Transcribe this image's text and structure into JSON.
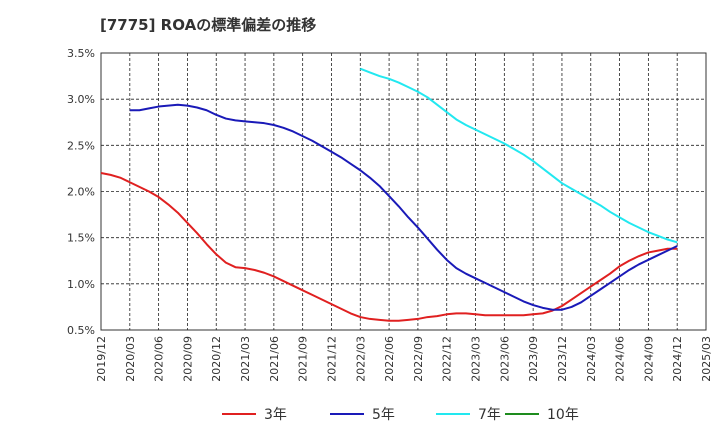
{
  "chart_data": {
    "type": "line",
    "title": "[7775]  ROAの標準偏差の推移",
    "xlabel": "",
    "ylabel": "",
    "ylim": [
      0.5,
      3.5
    ],
    "grid": true,
    "legend_position": "bottom",
    "y_ticks": [
      "0.5%",
      "1.0%",
      "1.5%",
      "2.0%",
      "2.5%",
      "3.0%",
      "3.5%"
    ],
    "x_ticks": [
      "2019/12",
      "2020/03",
      "2020/06",
      "2020/09",
      "2020/12",
      "2021/03",
      "2021/06",
      "2021/09",
      "2021/12",
      "2022/03",
      "2022/06",
      "2022/09",
      "2022/12",
      "2023/03",
      "2023/06",
      "2023/09",
      "2023/12",
      "2024/03",
      "2024/06",
      "2024/09",
      "2024/12",
      "2025/03"
    ],
    "series": [
      {
        "name": "3年",
        "color": "#e02020",
        "points": [
          [
            "2019/12",
            2.2
          ],
          [
            "2020/01",
            2.18
          ],
          [
            "2020/02",
            2.15
          ],
          [
            "2020/03",
            2.1
          ],
          [
            "2020/04",
            2.05
          ],
          [
            "2020/05",
            2.0
          ],
          [
            "2020/06",
            1.94
          ],
          [
            "2020/07",
            1.86
          ],
          [
            "2020/08",
            1.77
          ],
          [
            "2020/09",
            1.66
          ],
          [
            "2020/10",
            1.55
          ],
          [
            "2020/11",
            1.43
          ],
          [
            "2020/12",
            1.32
          ],
          [
            "2021/01",
            1.23
          ],
          [
            "2021/02",
            1.18
          ],
          [
            "2021/03",
            1.17
          ],
          [
            "2021/04",
            1.15
          ],
          [
            "2021/05",
            1.12
          ],
          [
            "2021/06",
            1.08
          ],
          [
            "2021/07",
            1.03
          ],
          [
            "2021/08",
            0.98
          ],
          [
            "2021/09",
            0.93
          ],
          [
            "2021/10",
            0.88
          ],
          [
            "2021/11",
            0.83
          ],
          [
            "2021/12",
            0.78
          ],
          [
            "2022/01",
            0.73
          ],
          [
            "2022/02",
            0.68
          ],
          [
            "2022/03",
            0.64
          ],
          [
            "2022/04",
            0.62
          ],
          [
            "2022/05",
            0.61
          ],
          [
            "2022/06",
            0.6
          ],
          [
            "2022/07",
            0.6
          ],
          [
            "2022/08",
            0.61
          ],
          [
            "2022/09",
            0.62
          ],
          [
            "2022/10",
            0.64
          ],
          [
            "2022/11",
            0.65
          ],
          [
            "2022/12",
            0.67
          ],
          [
            "2023/01",
            0.68
          ],
          [
            "2023/02",
            0.68
          ],
          [
            "2023/03",
            0.67
          ],
          [
            "2023/04",
            0.66
          ],
          [
            "2023/05",
            0.66
          ],
          [
            "2023/06",
            0.66
          ],
          [
            "2023/07",
            0.66
          ],
          [
            "2023/08",
            0.66
          ],
          [
            "2023/09",
            0.67
          ],
          [
            "2023/10",
            0.68
          ],
          [
            "2023/11",
            0.71
          ],
          [
            "2023/12",
            0.76
          ],
          [
            "2024/01",
            0.83
          ],
          [
            "2024/02",
            0.9
          ],
          [
            "2024/03",
            0.97
          ],
          [
            "2024/04",
            1.04
          ],
          [
            "2024/05",
            1.11
          ],
          [
            "2024/06",
            1.19
          ],
          [
            "2024/07",
            1.25
          ],
          [
            "2024/08",
            1.3
          ],
          [
            "2024/09",
            1.34
          ],
          [
            "2024/10",
            1.36
          ],
          [
            "2024/11",
            1.38
          ],
          [
            "2024/12",
            1.38
          ]
        ]
      },
      {
        "name": "5年",
        "color": "#1a1ab8",
        "points": [
          [
            "2020/03",
            2.88
          ],
          [
            "2020/04",
            2.88
          ],
          [
            "2020/05",
            2.9
          ],
          [
            "2020/06",
            2.92
          ],
          [
            "2020/07",
            2.93
          ],
          [
            "2020/08",
            2.94
          ],
          [
            "2020/09",
            2.93
          ],
          [
            "2020/10",
            2.91
          ],
          [
            "2020/11",
            2.88
          ],
          [
            "2020/12",
            2.83
          ],
          [
            "2021/01",
            2.79
          ],
          [
            "2021/02",
            2.77
          ],
          [
            "2021/03",
            2.76
          ],
          [
            "2021/04",
            2.75
          ],
          [
            "2021/05",
            2.74
          ],
          [
            "2021/06",
            2.72
          ],
          [
            "2021/07",
            2.69
          ],
          [
            "2021/08",
            2.65
          ],
          [
            "2021/09",
            2.6
          ],
          [
            "2021/10",
            2.55
          ],
          [
            "2021/11",
            2.49
          ],
          [
            "2021/12",
            2.43
          ],
          [
            "2022/01",
            2.37
          ],
          [
            "2022/02",
            2.3
          ],
          [
            "2022/03",
            2.23
          ],
          [
            "2022/04",
            2.15
          ],
          [
            "2022/05",
            2.06
          ],
          [
            "2022/06",
            1.95
          ],
          [
            "2022/07",
            1.84
          ],
          [
            "2022/08",
            1.72
          ],
          [
            "2022/09",
            1.61
          ],
          [
            "2022/10",
            1.49
          ],
          [
            "2022/11",
            1.37
          ],
          [
            "2022/12",
            1.26
          ],
          [
            "2023/01",
            1.17
          ],
          [
            "2023/02",
            1.11
          ],
          [
            "2023/03",
            1.06
          ],
          [
            "2023/04",
            1.01
          ],
          [
            "2023/05",
            0.96
          ],
          [
            "2023/06",
            0.91
          ],
          [
            "2023/07",
            0.86
          ],
          [
            "2023/08",
            0.81
          ],
          [
            "2023/09",
            0.77
          ],
          [
            "2023/10",
            0.74
          ],
          [
            "2023/11",
            0.72
          ],
          [
            "2023/12",
            0.72
          ],
          [
            "2024/01",
            0.75
          ],
          [
            "2024/02",
            0.8
          ],
          [
            "2024/03",
            0.87
          ],
          [
            "2024/04",
            0.94
          ],
          [
            "2024/05",
            1.01
          ],
          [
            "2024/06",
            1.08
          ],
          [
            "2024/07",
            1.15
          ],
          [
            "2024/08",
            1.21
          ],
          [
            "2024/09",
            1.26
          ],
          [
            "2024/10",
            1.31
          ],
          [
            "2024/11",
            1.36
          ],
          [
            "2024/12",
            1.41
          ]
        ]
      },
      {
        "name": "7年",
        "color": "#22e8f0",
        "points": [
          [
            "2022/03",
            3.33
          ],
          [
            "2022/04",
            3.29
          ],
          [
            "2022/05",
            3.25
          ],
          [
            "2022/06",
            3.22
          ],
          [
            "2022/07",
            3.18
          ],
          [
            "2022/08",
            3.13
          ],
          [
            "2022/09",
            3.08
          ],
          [
            "2022/10",
            3.02
          ],
          [
            "2022/11",
            2.94
          ],
          [
            "2022/12",
            2.86
          ],
          [
            "2023/01",
            2.78
          ],
          [
            "2023/02",
            2.72
          ],
          [
            "2023/03",
            2.67
          ],
          [
            "2023/04",
            2.62
          ],
          [
            "2023/05",
            2.57
          ],
          [
            "2023/06",
            2.52
          ],
          [
            "2023/07",
            2.46
          ],
          [
            "2023/08",
            2.4
          ],
          [
            "2023/09",
            2.33
          ],
          [
            "2023/10",
            2.25
          ],
          [
            "2023/11",
            2.17
          ],
          [
            "2023/12",
            2.09
          ],
          [
            "2024/01",
            2.03
          ],
          [
            "2024/02",
            1.97
          ],
          [
            "2024/03",
            1.91
          ],
          [
            "2024/04",
            1.85
          ],
          [
            "2024/05",
            1.78
          ],
          [
            "2024/06",
            1.72
          ],
          [
            "2024/07",
            1.66
          ],
          [
            "2024/08",
            1.61
          ],
          [
            "2024/09",
            1.56
          ],
          [
            "2024/10",
            1.52
          ],
          [
            "2024/11",
            1.48
          ],
          [
            "2024/12",
            1.45
          ]
        ]
      },
      {
        "name": "10年",
        "color": "#1e8c1e",
        "points": []
      }
    ]
  }
}
